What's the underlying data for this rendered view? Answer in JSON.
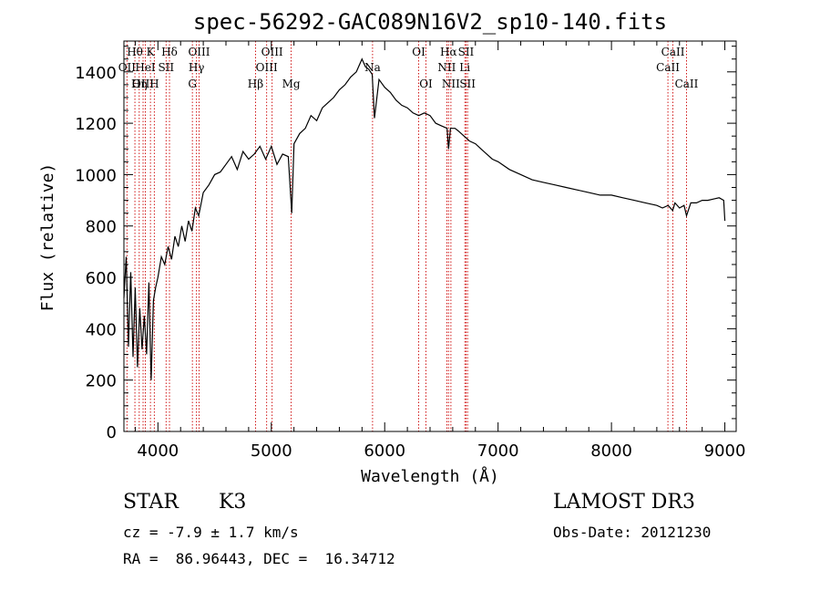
{
  "chart_data": {
    "type": "line",
    "title": "spec-56292-GAC089N16V2_sp10-140.fits",
    "xlabel": "Wavelength (Å)",
    "ylabel": "Flux (relative)",
    "xlim": [
      3700,
      9100
    ],
    "ylim": [
      0,
      1520
    ],
    "xticks": [
      4000,
      5000,
      6000,
      7000,
      8000,
      9000
    ],
    "yticks": [
      0,
      200,
      400,
      600,
      800,
      1000,
      1200,
      1400
    ],
    "series": [
      {
        "name": "flux",
        "x": [
          3700,
          3720,
          3740,
          3760,
          3780,
          3800,
          3820,
          3840,
          3860,
          3880,
          3900,
          3920,
          3940,
          3960,
          3980,
          4000,
          4030,
          4060,
          4090,
          4120,
          4150,
          4180,
          4210,
          4240,
          4270,
          4300,
          4330,
          4360,
          4400,
          4450,
          4500,
          4550,
          4600,
          4650,
          4700,
          4750,
          4800,
          4850,
          4900,
          4950,
          5000,
          5050,
          5100,
          5150,
          5180,
          5200,
          5250,
          5300,
          5350,
          5400,
          5450,
          5500,
          5550,
          5600,
          5650,
          5700,
          5750,
          5800,
          5830,
          5860,
          5890,
          5910,
          5950,
          6000,
          6050,
          6100,
          6150,
          6200,
          6250,
          6300,
          6350,
          6400,
          6450,
          6500,
          6550,
          6563,
          6580,
          6620,
          6650,
          6700,
          6750,
          6800,
          6850,
          6900,
          6950,
          7000,
          7100,
          7200,
          7300,
          7400,
          7500,
          7600,
          7700,
          7800,
          7900,
          8000,
          8100,
          8200,
          8300,
          8400,
          8450,
          8500,
          8540,
          8560,
          8600,
          8640,
          8662,
          8700,
          8750,
          8800,
          8850,
          8900,
          8950,
          8990,
          9000
        ],
        "values": [
          520,
          680,
          330,
          620,
          290,
          560,
          250,
          480,
          320,
          450,
          300,
          580,
          200,
          510,
          560,
          600,
          680,
          650,
          720,
          670,
          760,
          720,
          800,
          740,
          820,
          780,
          870,
          840,
          930,
          960,
          1000,
          1010,
          1040,
          1070,
          1020,
          1090,
          1060,
          1080,
          1110,
          1060,
          1110,
          1040,
          1080,
          1070,
          850,
          1120,
          1160,
          1180,
          1230,
          1210,
          1260,
          1280,
          1300,
          1330,
          1350,
          1380,
          1400,
          1450,
          1420,
          1410,
          1390,
          1220,
          1370,
          1340,
          1320,
          1290,
          1270,
          1260,
          1240,
          1230,
          1240,
          1230,
          1200,
          1190,
          1180,
          1100,
          1180,
          1180,
          1170,
          1150,
          1130,
          1120,
          1100,
          1080,
          1060,
          1050,
          1020,
          1000,
          980,
          970,
          960,
          950,
          940,
          930,
          920,
          920,
          910,
          900,
          890,
          880,
          870,
          880,
          860,
          890,
          870,
          880,
          840,
          890,
          890,
          900,
          900,
          905,
          910,
          900,
          820
        ]
      }
    ],
    "lines": [
      {
        "label": "Hθ",
        "x": 3797,
        "row": 1
      },
      {
        "label": "OII",
        "x": 3727,
        "row": 2
      },
      {
        "label": "OIII",
        "x": 3869,
        "row": 3
      },
      {
        "label": "K",
        "x": 3934,
        "row": 1
      },
      {
        "label": "HeI",
        "x": 3889,
        "row": 2
      },
      {
        "label": "Hη",
        "x": 3835,
        "row": 3
      },
      {
        "label": "SII",
        "x": 4072,
        "row": 2
      },
      {
        "label": "H",
        "x": 3968,
        "row": 3
      },
      {
        "label": "Hδ",
        "x": 4102,
        "row": 1
      },
      {
        "label": "OIII",
        "x": 4363,
        "row": 1
      },
      {
        "label": "Hγ",
        "x": 4340,
        "row": 2
      },
      {
        "label": "G",
        "x": 4304,
        "row": 3
      },
      {
        "label": "OIII",
        "x": 5007,
        "row": 1
      },
      {
        "label": "OIII",
        "x": 4959,
        "row": 2
      },
      {
        "label": "Hβ",
        "x": 4861,
        "row": 3
      },
      {
        "label": "Mg",
        "x": 5175,
        "row": 3
      },
      {
        "label": "Na",
        "x": 5893,
        "row": 2
      },
      {
        "label": "OI",
        "x": 6300,
        "row": 1
      },
      {
        "label": "OI",
        "x": 6364,
        "row": 3
      },
      {
        "label": "Hα",
        "x": 6563,
        "row": 1
      },
      {
        "label": "NII",
        "x": 6548,
        "row": 2
      },
      {
        "label": "NII",
        "x": 6584,
        "row": 3
      },
      {
        "label": "SII",
        "x": 6717,
        "row": 1
      },
      {
        "label": "Li",
        "x": 6707,
        "row": 2
      },
      {
        "label": "SII",
        "x": 6731,
        "row": 3
      },
      {
        "label": "CaII",
        "x": 8542,
        "row": 1
      },
      {
        "label": "CaII",
        "x": 8498,
        "row": 2
      },
      {
        "label": "CaII",
        "x": 8662,
        "row": 3
      }
    ]
  },
  "info": {
    "class": "STAR",
    "subclass": "K3",
    "survey": "LAMOST DR3",
    "cz": "cz = -7.9 ± 1.7 km/s",
    "obs_date": "Obs-Date: 20121230",
    "radec": "RA =  86.96443, DEC =  16.34712"
  },
  "colors": {
    "line_marker": "#cc0000",
    "spectrum": "#000000"
  }
}
